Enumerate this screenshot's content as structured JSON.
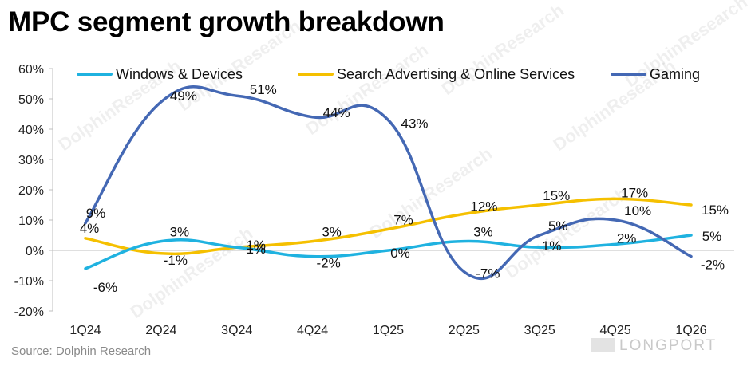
{
  "title": "MPC segment growth breakdown",
  "source": "Source: Dolphin Research",
  "watermark_text": "DolphinResearch",
  "watermark_brand": "LONGPORT",
  "chart_data": {
    "type": "line",
    "title": "MPC segment growth breakdown",
    "categories": [
      "1Q24",
      "2Q24",
      "3Q24",
      "4Q24",
      "1Q25",
      "2Q25",
      "3Q25",
      "4Q25",
      "1Q26"
    ],
    "ylim": [
      -0.2,
      0.6
    ],
    "yticks": [
      "-20%",
      "-10%",
      "0%",
      "10%",
      "20%",
      "30%",
      "40%",
      "50%",
      "60%"
    ],
    "grid": false,
    "legend_position": "top",
    "series": [
      {
        "name": "Windows & Devices",
        "color": "#1FB2E0",
        "values": [
          -0.06,
          0.03,
          0.01,
          -0.02,
          0.0,
          0.03,
          0.01,
          0.02,
          0.05
        ],
        "labels": [
          "-6%",
          "3%",
          "1%",
          "-2%",
          "0%",
          "3%",
          "1%",
          "2%",
          "5%"
        ]
      },
      {
        "name": "Search Advertising & Online Services",
        "color": "#F5C000",
        "values": [
          0.04,
          -0.01,
          0.01,
          0.03,
          0.07,
          0.12,
          0.15,
          0.17,
          0.15
        ],
        "labels": [
          "4%",
          "-1%",
          "1%",
          "3%",
          "7%",
          "12%",
          "15%",
          "17%",
          "15%"
        ]
      },
      {
        "name": "Gaming",
        "color": "#4468B4",
        "values": [
          0.09,
          0.49,
          0.51,
          0.44,
          0.43,
          -0.07,
          0.05,
          0.1,
          -0.02
        ],
        "labels": [
          "9%",
          "49%",
          "51%",
          "44%",
          "43%",
          "-7%",
          "5%",
          "10%",
          "-2%"
        ]
      }
    ]
  }
}
